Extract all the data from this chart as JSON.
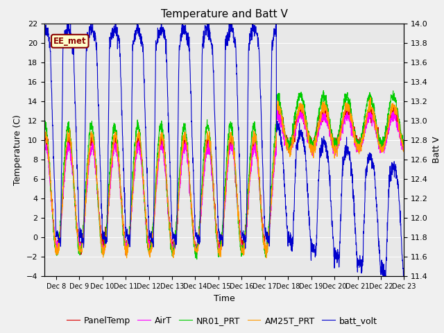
{
  "title": "Temperature and Batt V",
  "ylabel_left": "Temperature (C)",
  "ylabel_right": "Batt V",
  "xlabel": "Time",
  "xlim_days": [
    7.5,
    23
  ],
  "ylim_left": [
    -4,
    22
  ],
  "ylim_right": [
    11.4,
    14.0
  ],
  "xtick_labels": [
    "Dec 8",
    "Dec 9",
    "Dec 10",
    "Dec 11",
    "Dec 12",
    "Dec 13",
    "Dec 14",
    "Dec 15",
    "Dec 16",
    "Dec 17",
    "Dec 18",
    "Dec 19",
    "Dec 20",
    "Dec 21",
    "Dec 22",
    "Dec 23"
  ],
  "xtick_positions": [
    8,
    9,
    10,
    11,
    12,
    13,
    14,
    15,
    16,
    17,
    18,
    19,
    20,
    21,
    22,
    23
  ],
  "yticks_left": [
    -4,
    -2,
    0,
    2,
    4,
    6,
    8,
    10,
    12,
    14,
    16,
    18,
    20,
    22
  ],
  "yticks_right": [
    11.4,
    11.6,
    11.8,
    12.0,
    12.2,
    12.4,
    12.6,
    12.8,
    13.0,
    13.2,
    13.4,
    13.6,
    13.8,
    14.0
  ],
  "legend_entries": [
    "PanelTemp",
    "AirT",
    "NR01_PRT",
    "AM25T_PRT",
    "batt_volt"
  ],
  "legend_colors": [
    "#dd0000",
    "#ff00ff",
    "#00cc00",
    "#ff9900",
    "#0000cc"
  ],
  "plot_bg_color": "#e8e8e8",
  "fig_bg_color": "#f0f0f0",
  "annotation_text": "EE_met",
  "annotation_color": "#8b0000",
  "annotation_bg": "#ffffcc",
  "title_fontsize": 11,
  "axis_fontsize": 9,
  "tick_fontsize": 8,
  "legend_fontsize": 9,
  "line_width": 0.8
}
